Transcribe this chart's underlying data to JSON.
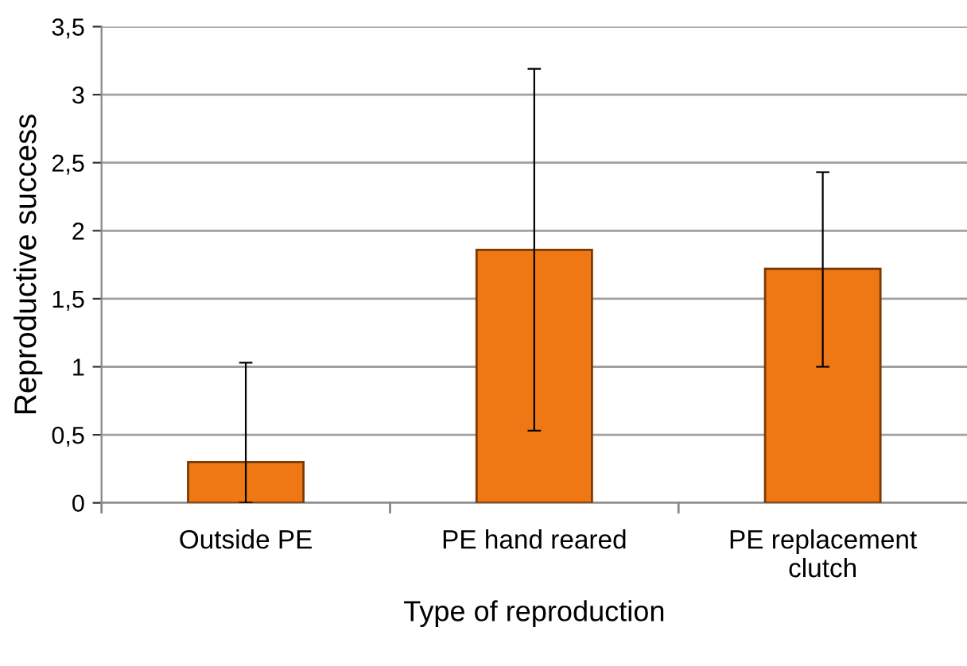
{
  "chart_data": {
    "type": "bar",
    "xlabel": "Type of reproduction",
    "ylabel": "Reproductive success",
    "categories": [
      "Outside PE",
      "PE hand reared",
      "PE replacement\nclutch"
    ],
    "values": [
      0.3,
      1.86,
      1.72
    ],
    "errors": [
      [
        0,
        1.03
      ],
      [
        0.53,
        3.19
      ],
      [
        1.0,
        2.43
      ]
    ],
    "color": "#f07814",
    "ylim": [
      0,
      3.5
    ],
    "yticks": [
      0,
      {
        "value": 0.5,
        "label": "0,5"
      },
      1,
      {
        "value": 1.5,
        "label": "1,5"
      },
      2,
      {
        "value": 2.5,
        "label": "2,5"
      },
      3,
      {
        "value": 3.5,
        "label": "3,5"
      }
    ],
    "grid": "y"
  }
}
